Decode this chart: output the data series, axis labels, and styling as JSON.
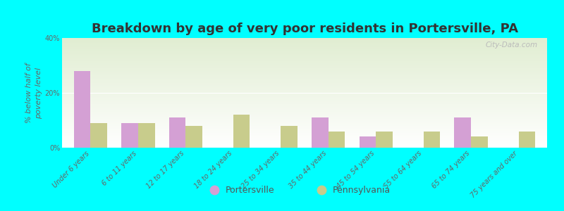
{
  "title": "Breakdown by age of very poor residents in Portersville, PA",
  "ylabel": "% below half of\npoverty level",
  "categories": [
    "Under 6 years",
    "6 to 11 years",
    "12 to 17 years",
    "18 to 24 years",
    "25 to 34 years",
    "35 to 44 years",
    "45 to 54 years",
    "55 to 64 years",
    "65 to 74 years",
    "75 years and over"
  ],
  "portersville": [
    28,
    9,
    11,
    0,
    0,
    11,
    4,
    0,
    11,
    0
  ],
  "pennsylvania": [
    9,
    9,
    8,
    12,
    8,
    6,
    6,
    6,
    4,
    6
  ],
  "portersville_color": "#d4a0d4",
  "pennsylvania_color": "#c8cc8c",
  "background_color": "#00ffff",
  "ylim": [
    0,
    40
  ],
  "yticks": [
    0,
    20,
    40
  ],
  "ytick_labels": [
    "0%",
    "20%",
    "40%"
  ],
  "title_fontsize": 13,
  "axis_label_fontsize": 8,
  "tick_fontsize": 7,
  "legend_fontsize": 9,
  "bar_width": 0.35,
  "watermark": "City-Data.com"
}
